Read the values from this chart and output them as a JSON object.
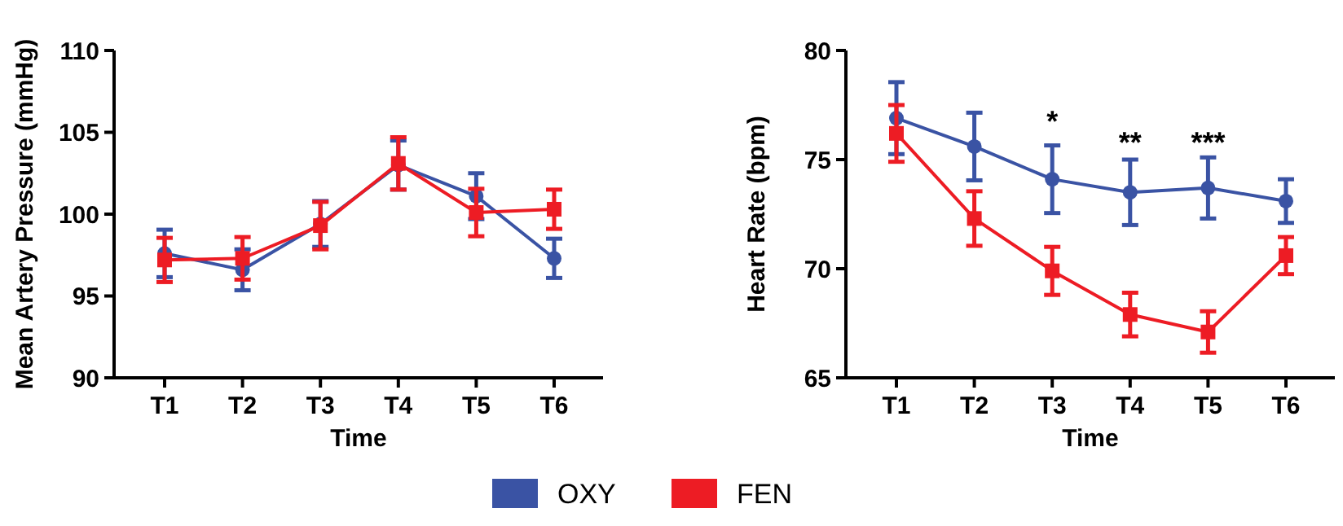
{
  "chart_data": [
    {
      "type": "line",
      "xlabel": "Time",
      "ylabel": "Mean Artery Pressure (mmHg)",
      "categories": [
        "T1",
        "T2",
        "T3",
        "T4",
        "T5",
        "T6"
      ],
      "ylim": [
        90,
        110
      ],
      "yticks": [
        90,
        95,
        100,
        105,
        110
      ],
      "legend": "bottom",
      "series": [
        {
          "name": "OXY",
          "color": "#3a53a4",
          "marker": "circle",
          "values": [
            97.6,
            96.6,
            99.4,
            103.0,
            101.1,
            97.3
          ],
          "errors": [
            1.45,
            1.25,
            1.4,
            1.5,
            1.4,
            1.2
          ]
        },
        {
          "name": "FEN",
          "color": "#ed1c24",
          "marker": "square",
          "values": [
            97.2,
            97.3,
            99.3,
            103.1,
            100.1,
            100.3
          ],
          "errors": [
            1.35,
            1.3,
            1.45,
            1.6,
            1.45,
            1.2
          ]
        }
      ]
    },
    {
      "type": "line",
      "xlabel": "Time",
      "ylabel": "Heart Rate (bpm)",
      "categories": [
        "T1",
        "T2",
        "T3",
        "T4",
        "T5",
        "T6"
      ],
      "ylim": [
        65,
        80
      ],
      "yticks": [
        65,
        70,
        75,
        80
      ],
      "legend": "bottom",
      "annotations": [
        "*",
        "**",
        "***"
      ],
      "series": [
        {
          "name": "OXY",
          "color": "#3a53a4",
          "marker": "circle",
          "values": [
            76.9,
            75.6,
            74.1,
            73.5,
            73.7,
            73.1
          ],
          "errors": [
            1.65,
            1.55,
            1.55,
            1.5,
            1.4,
            1.0
          ]
        },
        {
          "name": "FEN",
          "color": "#ed1c24",
          "marker": "square",
          "values": [
            76.2,
            72.3,
            69.9,
            67.9,
            67.1,
            70.6
          ],
          "errors": [
            1.3,
            1.25,
            1.1,
            1.0,
            0.95,
            0.85
          ]
        }
      ]
    }
  ]
}
